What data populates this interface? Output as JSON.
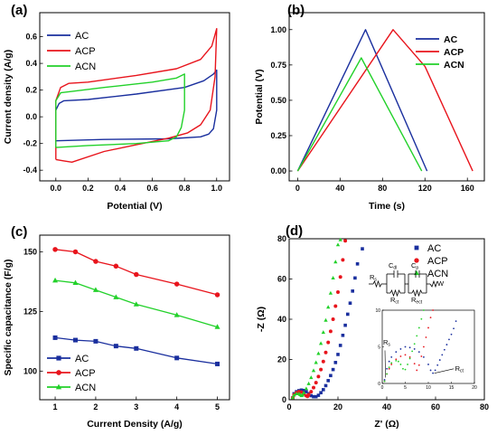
{
  "colors": {
    "AC": "#1a2f9e",
    "ACP": "#e8141c",
    "ACN": "#22d12a"
  },
  "chart_data": [
    {
      "panel_label": "(a)",
      "type": "line",
      "xlabel": "Potential (V)",
      "ylabel": "Current density (A/g)",
      "xlim": [
        -0.1,
        1.08
      ],
      "ylim": [
        -0.48,
        0.78
      ],
      "xticks": [
        0.0,
        0.2,
        0.4,
        0.6,
        0.8,
        1.0
      ],
      "xtick_labels": [
        "0.0",
        "0.2",
        "0.4",
        "0.6",
        "0.8",
        "1.0"
      ],
      "yticks": [
        -0.4,
        -0.2,
        0.0,
        0.2,
        0.4,
        0.6
      ],
      "ytick_labels": [
        "-0.4",
        "-0.2",
        "0.0",
        "0.2",
        "0.4",
        "0.6"
      ],
      "legend_position": "top-left",
      "series": [
        {
          "name": "AC",
          "points": [
            [
              0.0,
              -0.18
            ],
            [
              0.0,
              0.05
            ],
            [
              0.02,
              0.1
            ],
            [
              0.05,
              0.12
            ],
            [
              0.2,
              0.13
            ],
            [
              0.5,
              0.17
            ],
            [
              0.8,
              0.22
            ],
            [
              0.92,
              0.27
            ],
            [
              0.98,
              0.32
            ],
            [
              1.0,
              0.35
            ],
            [
              1.0,
              0.05
            ],
            [
              0.98,
              -0.09
            ],
            [
              0.95,
              -0.13
            ],
            [
              0.9,
              -0.15
            ],
            [
              0.7,
              -0.165
            ],
            [
              0.3,
              -0.17
            ],
            [
              0.0,
              -0.18
            ]
          ]
        },
        {
          "name": "ACP",
          "points": [
            [
              0.0,
              -0.32
            ],
            [
              0.0,
              0.12
            ],
            [
              0.03,
              0.22
            ],
            [
              0.08,
              0.25
            ],
            [
              0.2,
              0.26
            ],
            [
              0.5,
              0.31
            ],
            [
              0.75,
              0.36
            ],
            [
              0.9,
              0.43
            ],
            [
              0.97,
              0.53
            ],
            [
              1.0,
              0.66
            ],
            [
              0.99,
              0.3
            ],
            [
              0.96,
              0.05
            ],
            [
              0.9,
              -0.06
            ],
            [
              0.82,
              -0.12
            ],
            [
              0.7,
              -0.16
            ],
            [
              0.5,
              -0.21
            ],
            [
              0.3,
              -0.26
            ],
            [
              0.1,
              -0.34
            ],
            [
              0.05,
              -0.33
            ],
            [
              0.0,
              -0.32
            ]
          ]
        },
        {
          "name": "ACN",
          "points": [
            [
              0.0,
              -0.23
            ],
            [
              0.0,
              0.12
            ],
            [
              0.03,
              0.18
            ],
            [
              0.1,
              0.19
            ],
            [
              0.3,
              0.22
            ],
            [
              0.6,
              0.26
            ],
            [
              0.75,
              0.29
            ],
            [
              0.8,
              0.32
            ],
            [
              0.8,
              0.05
            ],
            [
              0.78,
              -0.08
            ],
            [
              0.75,
              -0.15
            ],
            [
              0.7,
              -0.18
            ],
            [
              0.5,
              -0.2
            ],
            [
              0.2,
              -0.215
            ],
            [
              0.0,
              -0.23
            ]
          ]
        }
      ]
    },
    {
      "panel_label": "(b)",
      "type": "line",
      "xlabel": "Time (s)",
      "ylabel": "Potential (V)",
      "xlim": [
        -8,
        176
      ],
      "ylim": [
        -0.07,
        1.12
      ],
      "xticks": [
        0,
        40,
        80,
        120,
        160
      ],
      "xtick_labels": [
        "0",
        "40",
        "80",
        "120",
        "160"
      ],
      "yticks": [
        0.0,
        0.25,
        0.5,
        0.75,
        1.0
      ],
      "ytick_labels": [
        "0.00",
        "0.25",
        "0.50",
        "0.75",
        "1.00"
      ],
      "legend_position": "top-right",
      "series": [
        {
          "name": "AC",
          "points": [
            [
              0,
              0
            ],
            [
              64,
              1.0
            ],
            [
              122,
              0
            ]
          ]
        },
        {
          "name": "ACP",
          "points": [
            [
              0,
              0
            ],
            [
              90,
              1.0
            ],
            [
              120,
              0.74
            ],
            [
              165,
              0
            ]
          ]
        },
        {
          "name": "ACN",
          "points": [
            [
              0,
              0
            ],
            [
              60,
              0.8
            ],
            [
              117,
              0
            ]
          ]
        }
      ]
    },
    {
      "panel_label": "(c)",
      "type": "line",
      "xlabel": "Current Density (A/g)",
      "ylabel": "Specific capacitance (F/g)",
      "xlim": [
        0.62,
        5.3
      ],
      "ylim": [
        88,
        157
      ],
      "xticks": [
        1,
        2,
        3,
        4,
        5
      ],
      "xtick_labels": [
        "1",
        "2",
        "3",
        "4",
        "5"
      ],
      "yticks": [
        100,
        125,
        150
      ],
      "ytick_labels": [
        "100",
        "125",
        "150"
      ],
      "legend_position": "bottom-left",
      "series": [
        {
          "name": "AC",
          "x": [
            1,
            1.5,
            2,
            2.5,
            3,
            4,
            5
          ],
          "y": [
            114,
            113,
            112.5,
            110.5,
            109.5,
            105.5,
            103
          ]
        },
        {
          "name": "ACP",
          "x": [
            1,
            1.5,
            2,
            2.5,
            3,
            4,
            5
          ],
          "y": [
            151,
            150,
            146,
            144,
            140.5,
            136.5,
            132
          ]
        },
        {
          "name": "ACN",
          "x": [
            1,
            1.5,
            2,
            2.5,
            3,
            4,
            5
          ],
          "y": [
            138,
            137,
            134,
            131,
            128,
            123.5,
            118.5
          ]
        }
      ]
    },
    {
      "panel_label": "(d)",
      "type": "scatter",
      "xlabel": "Z' (Ω)",
      "ylabel": "-Z (Ω)",
      "xlim": [
        0,
        80
      ],
      "ylim": [
        0,
        80
      ],
      "xticks": [
        0,
        20,
        40,
        60,
        80
      ],
      "xtick_labels": [
        "0",
        "20",
        "40",
        "60",
        "80"
      ],
      "yticks": [
        0,
        20,
        40,
        60,
        80
      ],
      "ytick_labels": [
        "0",
        "20",
        "40",
        "60",
        "80"
      ],
      "legend_position": "top-right",
      "circuit_labels": {
        "rs": "R",
        "rs_sub": "s",
        "cdl": "C",
        "cdl_sub": "dl",
        "cp": "C",
        "cp_sub": "p",
        "rct": "R",
        "rct_sub": "ct",
        "rect": "R",
        "rect_sub": "ect",
        "w": "W"
      },
      "series": [
        {
          "name": "AC",
          "marker": "square",
          "points": [
            [
              1.5,
              1
            ],
            [
              2,
              3
            ],
            [
              3,
              4
            ],
            [
              4,
              4.5
            ],
            [
              5,
              4.8
            ],
            [
              6,
              4.6
            ],
            [
              7,
              4
            ],
            [
              8,
              3
            ],
            [
              9,
              2
            ],
            [
              10,
              1.5
            ],
            [
              11,
              1.5
            ],
            [
              12,
              2.2
            ],
            [
              13,
              3.5
            ],
            [
              14,
              5
            ],
            [
              15,
              7
            ],
            [
              16,
              9.5
            ],
            [
              17,
              12
            ],
            [
              18,
              15
            ],
            [
              19,
              18.5
            ],
            [
              20,
              22.5
            ],
            [
              21,
              27
            ],
            [
              22,
              32
            ],
            [
              23,
              37
            ],
            [
              24,
              42.5
            ],
            [
              25,
              48
            ],
            [
              26,
              54
            ],
            [
              27,
              60.5
            ],
            [
              28,
              67.5
            ],
            [
              30,
              75
            ]
          ]
        },
        {
          "name": "ACP",
          "marker": "circle",
          "points": [
            [
              1.5,
              1
            ],
            [
              2,
              2.5
            ],
            [
              3,
              3.5
            ],
            [
              4,
              4
            ],
            [
              5,
              3.8
            ],
            [
              6,
              3
            ],
            [
              7,
              2
            ],
            [
              7.5,
              1.7
            ],
            [
              8,
              2.5
            ],
            [
              9,
              4
            ],
            [
              10,
              6
            ],
            [
              11,
              8.5
            ],
            [
              12,
              11.5
            ],
            [
              13,
              15
            ],
            [
              14,
              19
            ],
            [
              15,
              23.5
            ],
            [
              16,
              28.5
            ],
            [
              17,
              34
            ],
            [
              18,
              40
            ],
            [
              19,
              46.5
            ],
            [
              20,
              53.5
            ],
            [
              21,
              61
            ],
            [
              22,
              69.5
            ],
            [
              23,
              79
            ]
          ]
        },
        {
          "name": "ACN",
          "marker": "triangle",
          "points": [
            [
              1.5,
              1
            ],
            [
              2,
              2.3
            ],
            [
              3,
              3
            ],
            [
              4,
              3
            ],
            [
              4.5,
              2.5
            ],
            [
              5,
              2
            ],
            [
              5.5,
              2.3
            ],
            [
              6,
              3.5
            ],
            [
              7,
              5.5
            ],
            [
              8,
              8
            ],
            [
              9,
              11
            ],
            [
              10,
              14.5
            ],
            [
              11,
              18.5
            ],
            [
              12,
              23
            ],
            [
              13,
              28
            ],
            [
              14,
              33.5
            ],
            [
              15,
              39.5
            ],
            [
              16,
              46
            ],
            [
              17,
              53
            ],
            [
              18,
              60.5
            ],
            [
              19,
              68.5
            ],
            [
              20,
              77
            ],
            [
              21,
              79.5
            ]
          ]
        }
      ],
      "inset": {
        "xlim": [
          0,
          20
        ],
        "ylim": [
          0,
          10
        ],
        "xticks": [
          0,
          5,
          10,
          15,
          20
        ],
        "xtick_labels": [
          "0",
          "5",
          "10",
          "15",
          "20"
        ],
        "yticks": [
          0,
          5,
          10
        ],
        "ytick_labels": [
          "0",
          "5",
          "10"
        ],
        "label_rs": "R",
        "label_rs_sub": "s",
        "label_rct": "R",
        "label_rct_sub": "ct",
        "series": [
          {
            "name": "AC",
            "points": [
              [
                0.5,
                0.5
              ],
              [
                1,
                2
              ],
              [
                1.5,
                3
              ],
              [
                2,
                3.6
              ],
              [
                3,
                4.3
              ],
              [
                4,
                4.7
              ],
              [
                5,
                5
              ],
              [
                6,
                4.9
              ],
              [
                7,
                4.7
              ],
              [
                8,
                4.3
              ],
              [
                9,
                3.6
              ],
              [
                10,
                2.6
              ],
              [
                10.5,
                1.8
              ],
              [
                11,
                1.4
              ],
              [
                11.5,
                1.8
              ],
              [
                12,
                2.5
              ],
              [
                12.5,
                3.2
              ],
              [
                13,
                3.9
              ],
              [
                13.5,
                4.6
              ],
              [
                14,
                5.3
              ],
              [
                14.5,
                6
              ],
              [
                15,
                6.7
              ],
              [
                15.5,
                7.5
              ],
              [
                16,
                8.5
              ]
            ]
          },
          {
            "name": "ACP",
            "points": [
              [
                0.5,
                0.3
              ],
              [
                1,
                1.3
              ],
              [
                1.5,
                2
              ],
              [
                2,
                2.6
              ],
              [
                3,
                3.3
              ],
              [
                4,
                3.7
              ],
              [
                5,
                3.9
              ],
              [
                6,
                3.6
              ],
              [
                7,
                2.7
              ],
              [
                7.5,
                1.8
              ],
              [
                8,
                2.5
              ],
              [
                8.5,
                3.7
              ],
              [
                9,
                5
              ],
              [
                9.5,
                6.3
              ],
              [
                10,
                7.6
              ],
              [
                10.5,
                9
              ],
              [
                11,
                10
              ]
            ]
          },
          {
            "name": "ACN",
            "points": [
              [
                0.5,
                0.3
              ],
              [
                1,
                1.3
              ],
              [
                1.5,
                2.2
              ],
              [
                2,
                2.8
              ],
              [
                3,
                3.1
              ],
              [
                3.5,
                3
              ],
              [
                4,
                2.6
              ],
              [
                4.5,
                2
              ],
              [
                5,
                1.9
              ],
              [
                5.5,
                2.6
              ],
              [
                6,
                3.4
              ],
              [
                6.5,
                4.4
              ],
              [
                7,
                5.4
              ],
              [
                7.5,
                6.5
              ],
              [
                8,
                7.6
              ],
              [
                8.5,
                8.8
              ],
              [
                9,
                10
              ]
            ]
          }
        ]
      }
    }
  ]
}
